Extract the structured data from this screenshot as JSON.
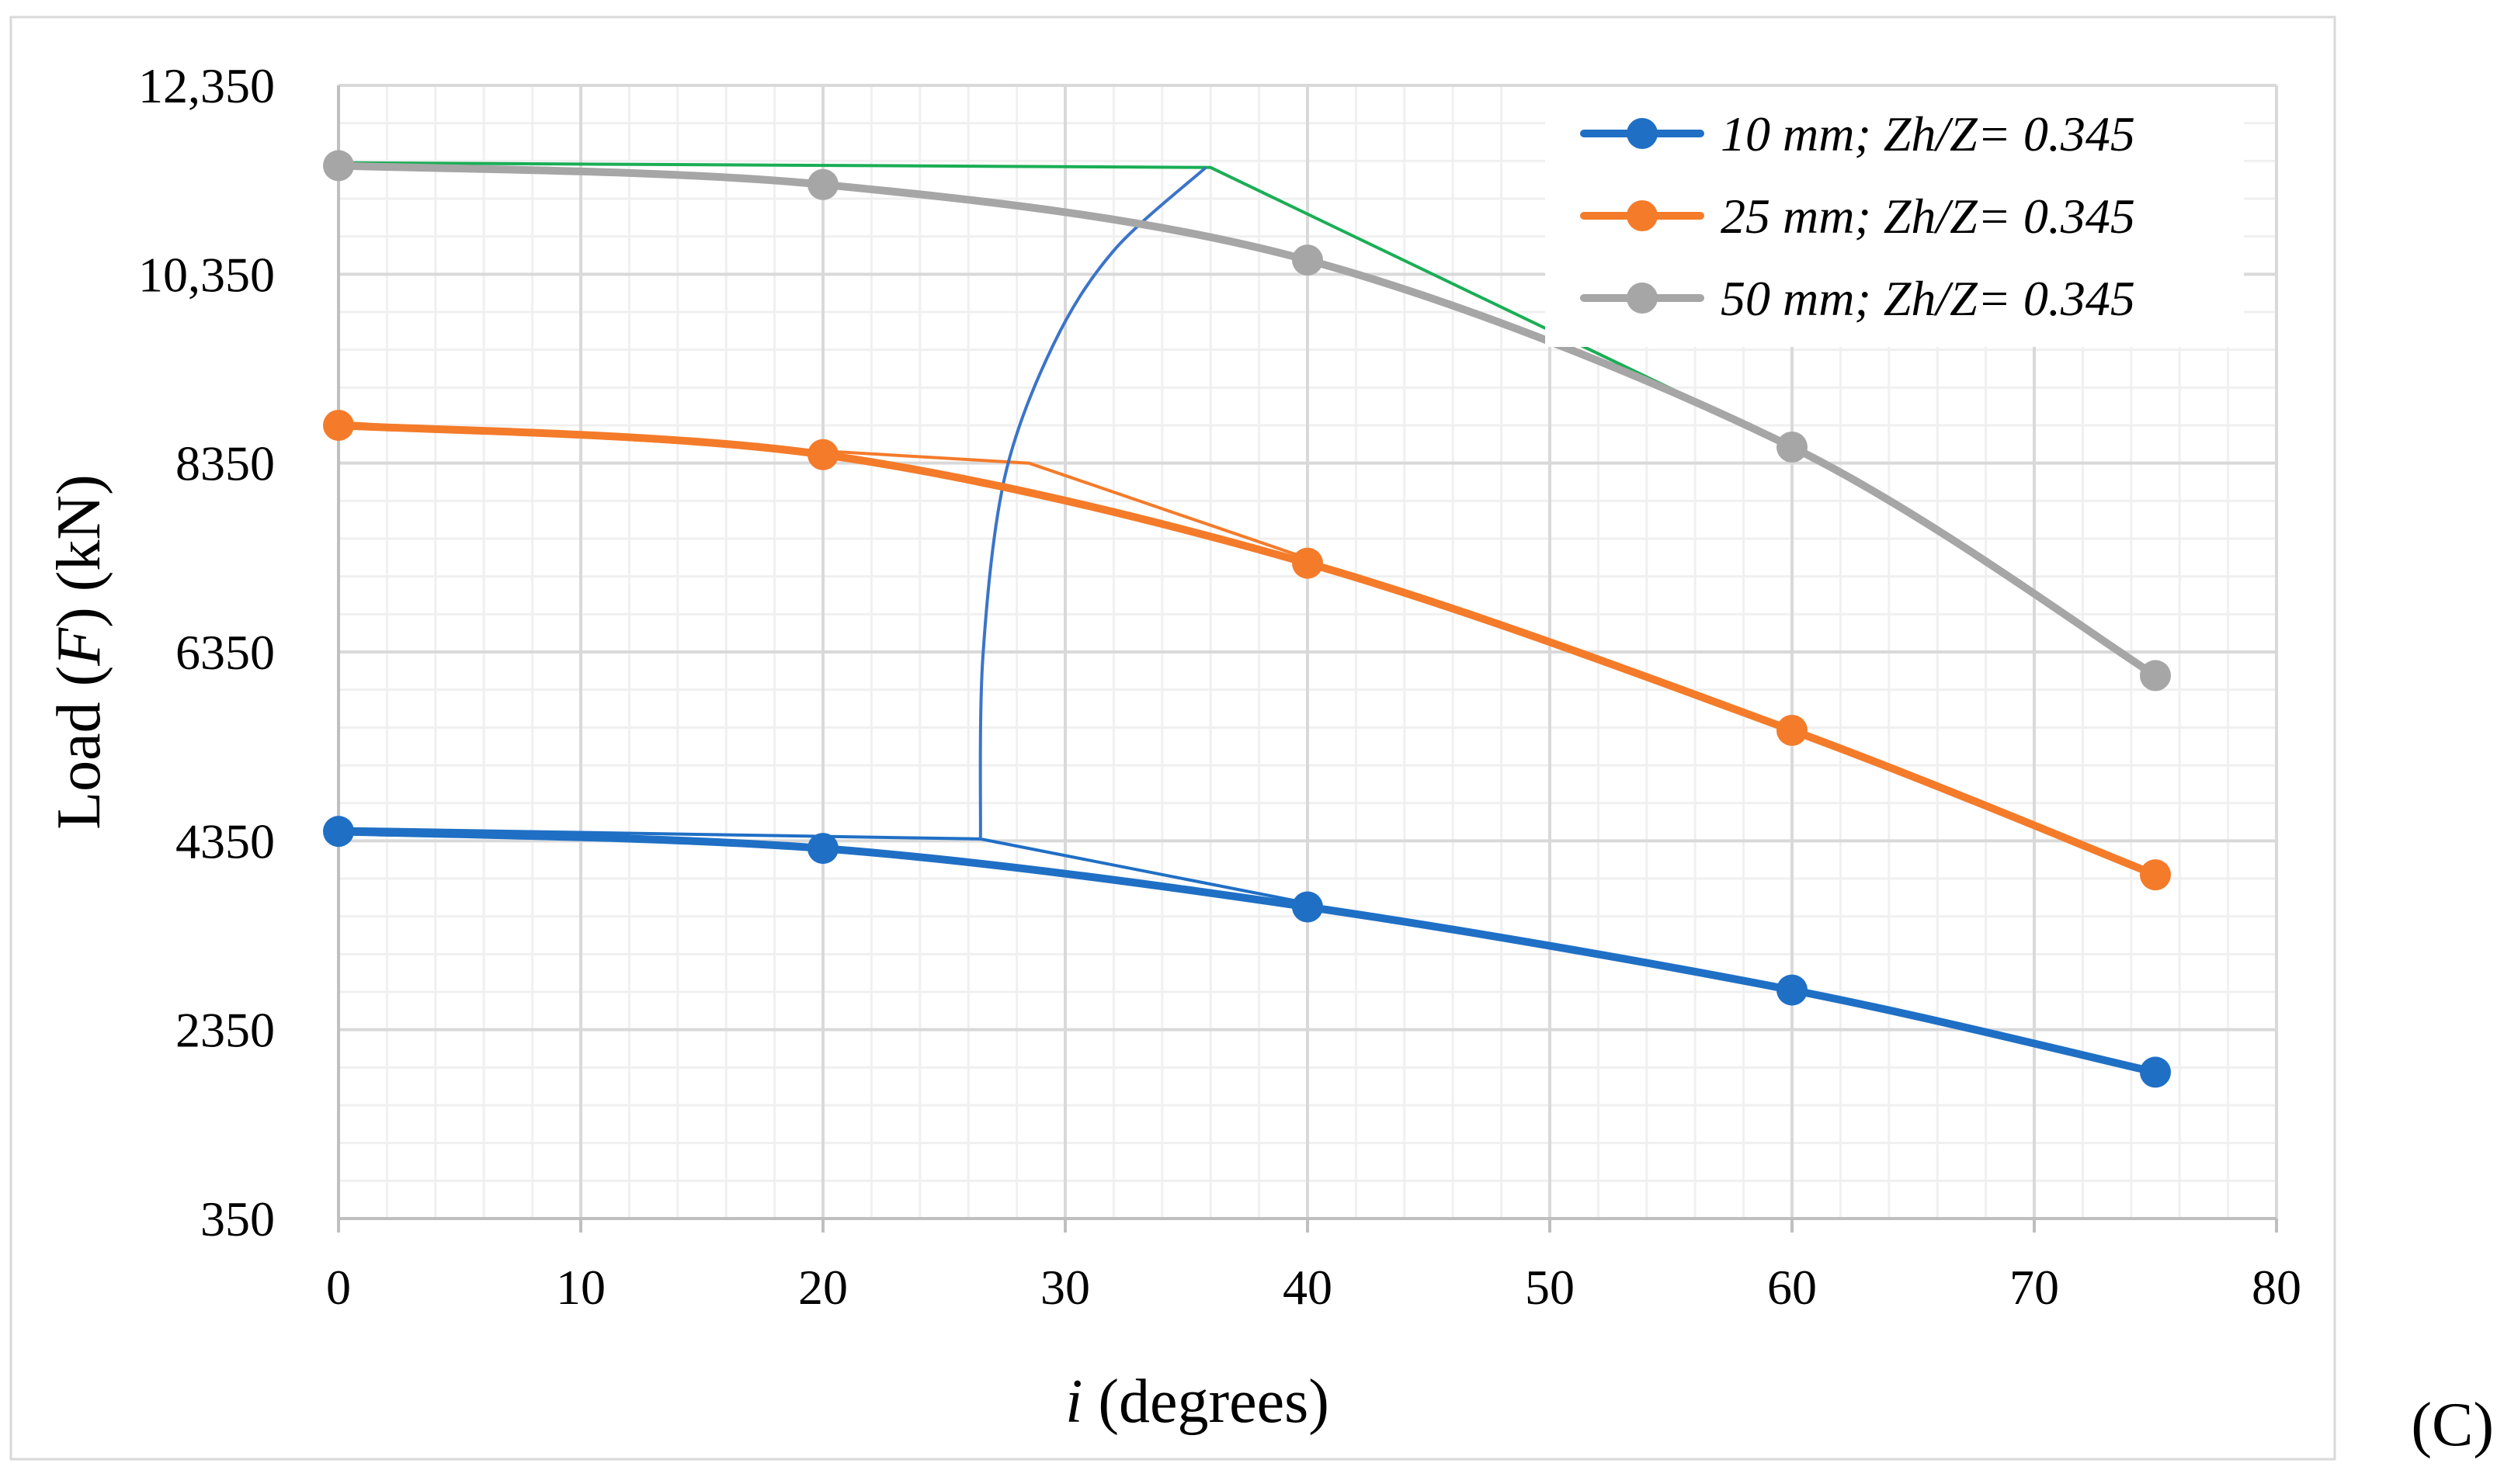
{
  "panel_label": "(C)",
  "chart_data": {
    "type": "line",
    "title": "",
    "xlabel_italic": "i",
    "xlabel_rest": " (degrees)",
    "ylabel_pre": "Load (",
    "ylabel_italic": "F",
    "ylabel_post": ") (kN)",
    "xlim": [
      0,
      80
    ],
    "ylim": [
      350,
      12350
    ],
    "x_ticks": [
      0,
      10,
      20,
      30,
      40,
      50,
      60,
      70,
      80
    ],
    "x_tick_labels": [
      "0",
      "10",
      "20",
      "30",
      "40",
      "50",
      "60",
      "70",
      "80"
    ],
    "y_ticks": [
      350,
      2350,
      4350,
      6350,
      8350,
      10350,
      12350
    ],
    "y_tick_labels": [
      "350",
      "2350",
      "4350",
      "6350",
      "8350",
      "10,350",
      "12,350"
    ],
    "x_minor_step": 2,
    "y_minor_step": 400,
    "grid": true,
    "legend_position": "top-right",
    "series": [
      {
        "name": "10 mm; Zh/Z= 0.345",
        "color": "#1f6fc5",
        "x": [
          0,
          20,
          40,
          60,
          75
        ],
        "values": [
          4450,
          4270,
          3650,
          2770,
          1900
        ]
      },
      {
        "name": "25 mm; Zh/Z= 0.345",
        "color": "#f47b2a",
        "x": [
          0,
          20,
          40,
          60,
          75
        ],
        "values": [
          8750,
          8440,
          7290,
          5520,
          3990
        ]
      },
      {
        "name": "50 mm; Zh/Z= 0.345",
        "color": "#a6a6a6",
        "x": [
          0,
          20,
          40,
          60,
          75
        ],
        "values": [
          11500,
          11300,
          10500,
          8520,
          6100
        ]
      }
    ],
    "annotations": [
      {
        "name": "blue-bilinear-fit",
        "color": "#1f6fc5",
        "x": [
          0,
          26.5,
          40
        ],
        "values": [
          4480,
          4370,
          3690
        ]
      },
      {
        "name": "orange-bilinear-fit",
        "color": "#f47b2a",
        "x": [
          0,
          28.5,
          40
        ],
        "values": [
          8780,
          8350,
          7340
        ]
      },
      {
        "name": "green-bilinear-fit",
        "color": "#1aae55",
        "x": [
          0.5,
          36,
          61
        ],
        "values": [
          11530,
          11480,
          8400
        ]
      },
      {
        "name": "envelope-curve",
        "color": "#3b74c9",
        "x": [
          26.5,
          26.6,
          27.5,
          29.5,
          32,
          35.8
        ],
        "values": [
          4370,
          6300,
          8200,
          9600,
          10600,
          11480
        ]
      }
    ]
  }
}
